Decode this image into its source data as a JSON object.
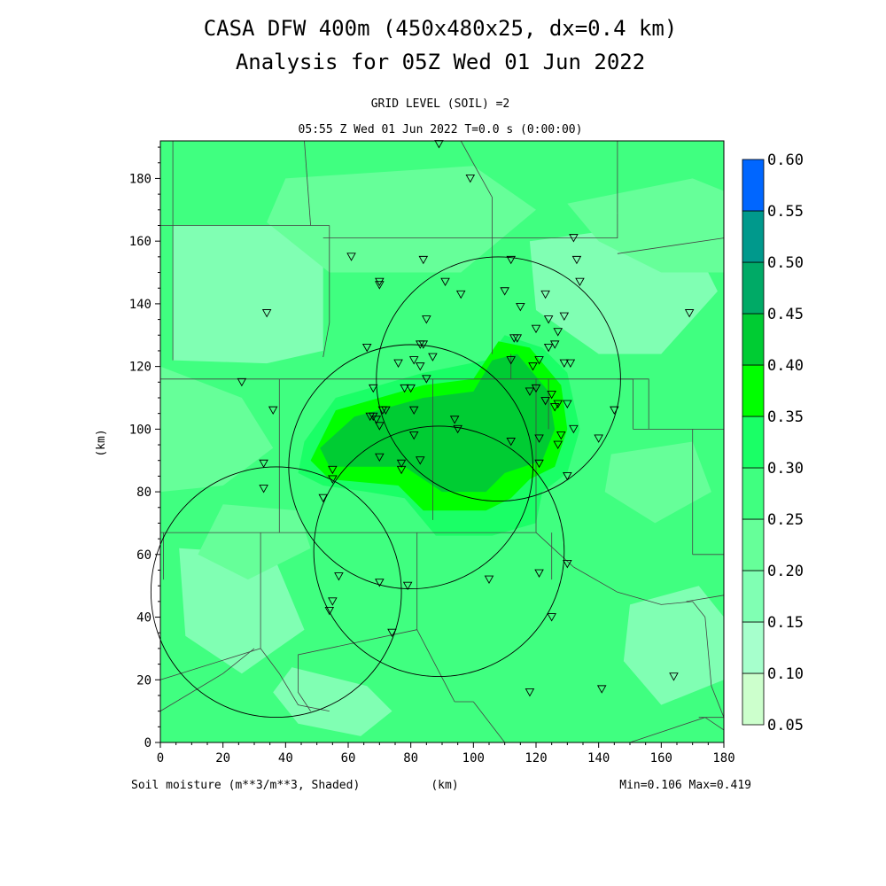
{
  "chart_data": {
    "type": "heatmap",
    "title": "CASA DFW 400m (450x480x25, dx=0.4 km)",
    "subtitle": "Analysis for 05Z Wed 01 Jun 2022",
    "level_label": "GRID LEVEL (SOIL) =2",
    "time_label": "05:55 Z Wed 01 Jun 2022   T=0.0 s (0:00:00)",
    "xlabel": "(km)",
    "ylabel": "(km)",
    "variable_label": "Soil moisture (m**3/m**3, Shaded)",
    "minmax_label": "Min=0.106 Max=0.419",
    "xlim": [
      0,
      180
    ],
    "ylim": [
      0,
      192
    ],
    "x_ticks": [
      "0",
      "20",
      "40",
      "60",
      "80",
      "100",
      "120",
      "140",
      "160",
      "180"
    ],
    "y_ticks": [
      "0",
      "20",
      "40",
      "60",
      "80",
      "100",
      "120",
      "140",
      "160",
      "180"
    ],
    "colorbar": {
      "levels": [
        "0.05",
        "0.10",
        "0.15",
        "0.20",
        "0.25",
        "0.30",
        "0.35",
        "0.40",
        "0.45",
        "0.50",
        "0.55",
        "0.60"
      ],
      "colors": [
        "#ccffcc",
        "#a6ffcc",
        "#80ffb3",
        "#66ff99",
        "#40ff80",
        "#1aff66",
        "#00ff00",
        "#00cc33",
        "#00aa66",
        "#00998c",
        "#0066ff"
      ]
    },
    "fill_colors": {
      "c015": "#80ffb3",
      "c020": "#66ff99",
      "c025": "#40ff80",
      "c030": "#1aff66",
      "c035": "#00ff00",
      "c040": "#00cc33"
    },
    "radar_rings": [
      {
        "x": 37,
        "y": 48,
        "r": 40
      },
      {
        "x": 80,
        "y": 88,
        "r": 39
      },
      {
        "x": 89,
        "y": 61,
        "r": 40
      },
      {
        "x": 108,
        "y": 116,
        "r": 39
      }
    ],
    "stations": [
      [
        89,
        191
      ],
      [
        99,
        180
      ],
      [
        132,
        161
      ],
      [
        61,
        155
      ],
      [
        112,
        154
      ],
      [
        84,
        154
      ],
      [
        133,
        154
      ],
      [
        70,
        147
      ],
      [
        70,
        146
      ],
      [
        91,
        147
      ],
      [
        134,
        147
      ],
      [
        96,
        143
      ],
      [
        110,
        144
      ],
      [
        123,
        143
      ],
      [
        115,
        139
      ],
      [
        34,
        137
      ],
      [
        85,
        135
      ],
      [
        129,
        136
      ],
      [
        169,
        137
      ],
      [
        124,
        135
      ],
      [
        127,
        131
      ],
      [
        120,
        132
      ],
      [
        113,
        129
      ],
      [
        114,
        129
      ],
      [
        126,
        127
      ],
      [
        84,
        127
      ],
      [
        66,
        126
      ],
      [
        124,
        126
      ],
      [
        83,
        127
      ],
      [
        87,
        123
      ],
      [
        76,
        121
      ],
      [
        81,
        122
      ],
      [
        112,
        122
      ],
      [
        83,
        120
      ],
      [
        119,
        120
      ],
      [
        121,
        122
      ],
      [
        131,
        121
      ],
      [
        129,
        121
      ],
      [
        26,
        115
      ],
      [
        85,
        116
      ],
      [
        78,
        113
      ],
      [
        68,
        113
      ],
      [
        80,
        113
      ],
      [
        118,
        112
      ],
      [
        120,
        113
      ],
      [
        125,
        111
      ],
      [
        123,
        109
      ],
      [
        127,
        108
      ],
      [
        126,
        107
      ],
      [
        130,
        108
      ],
      [
        36,
        106
      ],
      [
        71,
        106
      ],
      [
        72,
        106
      ],
      [
        81,
        106
      ],
      [
        145,
        106
      ],
      [
        67,
        104
      ],
      [
        68,
        104
      ],
      [
        69,
        103
      ],
      [
        94,
        103
      ],
      [
        70,
        101
      ],
      [
        95,
        100
      ],
      [
        132,
        100
      ],
      [
        128,
        98
      ],
      [
        81,
        98
      ],
      [
        140,
        97
      ],
      [
        121,
        97
      ],
      [
        112,
        96
      ],
      [
        127,
        95
      ],
      [
        33,
        89
      ],
      [
        70,
        91
      ],
      [
        121,
        89
      ],
      [
        83,
        90
      ],
      [
        77,
        89
      ],
      [
        77,
        87
      ],
      [
        55,
        87
      ],
      [
        55,
        84
      ],
      [
        130,
        85
      ],
      [
        33,
        81
      ],
      [
        52,
        78
      ],
      [
        130,
        57
      ],
      [
        121,
        54
      ],
      [
        57,
        53
      ],
      [
        105,
        52
      ],
      [
        70,
        51
      ],
      [
        79,
        50
      ],
      [
        55,
        45
      ],
      [
        54,
        42
      ],
      [
        125,
        40
      ],
      [
        74,
        35
      ],
      [
        164,
        21
      ],
      [
        141,
        17
      ],
      [
        118,
        16
      ]
    ]
  }
}
